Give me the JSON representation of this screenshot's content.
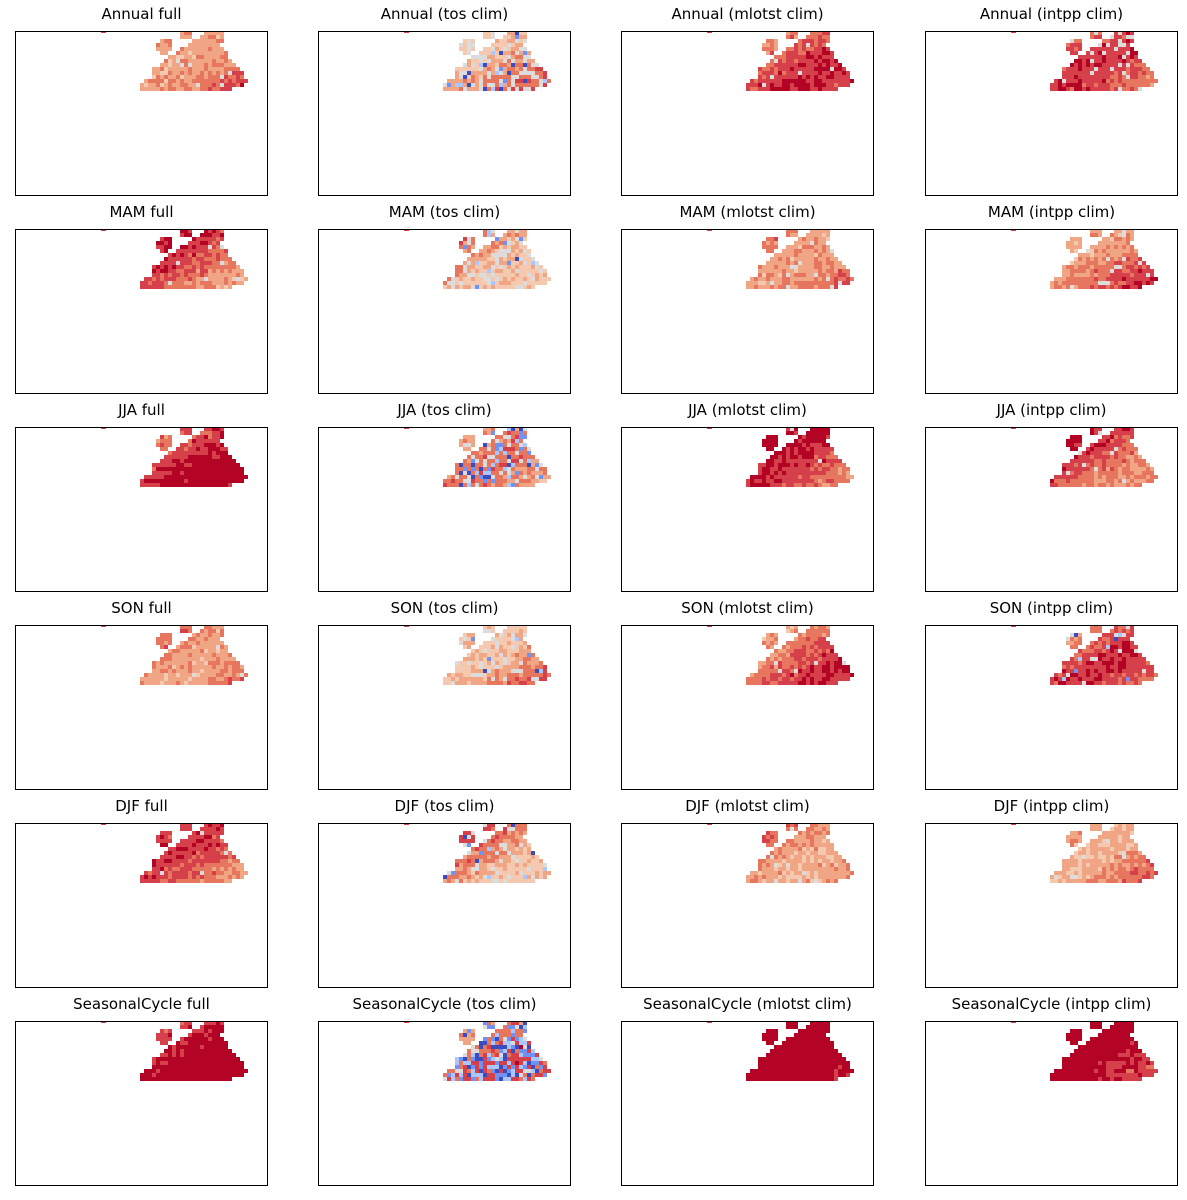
{
  "colors": {
    "deep_red": "#b40426",
    "red": "#d6404a",
    "salmon": "#e7765e",
    "light_salmon": "#f0a584",
    "pale": "#f5c8b0",
    "gray": "#dcdcdc",
    "light_blue": "#aac7fd",
    "blue": "#6f92f3",
    "deep_blue": "#3b4cc0",
    "frame": "#000000"
  },
  "chart_data": [
    {
      "type": "heatmap",
      "title": "Annual full",
      "row": "Annual",
      "variant": "full",
      "palette": "coolwarm",
      "intensity": 0.55,
      "blue_fraction": 0.0,
      "gray_fraction": 0.02
    },
    {
      "type": "heatmap",
      "title": "Annual (tos clim)",
      "row": "Annual",
      "variant": "tos clim",
      "palette": "coolwarm",
      "intensity": 0.35,
      "blue_fraction": 0.08,
      "gray_fraction": 0.22
    },
    {
      "type": "heatmap",
      "title": "Annual (mlotst clim)",
      "row": "Annual",
      "variant": "mlotst clim",
      "palette": "coolwarm",
      "intensity": 0.55,
      "blue_fraction": 0.0,
      "gray_fraction": 0.03
    },
    {
      "type": "heatmap",
      "title": "Annual (intpp clim)",
      "row": "Annual",
      "variant": "intpp clim",
      "palette": "coolwarm",
      "intensity": 0.5,
      "blue_fraction": 0.0,
      "gray_fraction": 0.12
    },
    {
      "type": "heatmap",
      "title": "MAM full",
      "row": "MAM",
      "variant": "full",
      "palette": "coolwarm",
      "intensity": 0.55,
      "blue_fraction": 0.0,
      "gray_fraction": 0.02
    },
    {
      "type": "heatmap",
      "title": "MAM (tos clim)",
      "row": "MAM",
      "variant": "tos clim",
      "palette": "coolwarm",
      "intensity": 0.35,
      "blue_fraction": 0.06,
      "gray_fraction": 0.18
    },
    {
      "type": "heatmap",
      "title": "MAM (mlotst clim)",
      "row": "MAM",
      "variant": "mlotst clim",
      "palette": "coolwarm",
      "intensity": 0.55,
      "blue_fraction": 0.0,
      "gray_fraction": 0.02
    },
    {
      "type": "heatmap",
      "title": "MAM (intpp clim)",
      "row": "MAM",
      "variant": "intpp clim",
      "palette": "coolwarm",
      "intensity": 0.55,
      "blue_fraction": 0.0,
      "gray_fraction": 0.04
    },
    {
      "type": "heatmap",
      "title": "JJA full",
      "row": "JJA",
      "variant": "full",
      "palette": "coolwarm",
      "intensity": 0.72,
      "blue_fraction": 0.0,
      "gray_fraction": 0.0
    },
    {
      "type": "heatmap",
      "title": "JJA (tos clim)",
      "row": "JJA",
      "variant": "tos clim",
      "palette": "coolwarm",
      "intensity": 0.3,
      "blue_fraction": 0.14,
      "gray_fraction": 0.15
    },
    {
      "type": "heatmap",
      "title": "JJA (mlotst clim)",
      "row": "JJA",
      "variant": "mlotst clim",
      "palette": "coolwarm",
      "intensity": 0.65,
      "blue_fraction": 0.0,
      "gray_fraction": 0.02
    },
    {
      "type": "heatmap",
      "title": "JJA (intpp clim)",
      "row": "JJA",
      "variant": "intpp clim",
      "palette": "coolwarm",
      "intensity": 0.65,
      "blue_fraction": 0.0,
      "gray_fraction": 0.03
    },
    {
      "type": "heatmap",
      "title": "SON full",
      "row": "SON",
      "variant": "full",
      "palette": "coolwarm",
      "intensity": 0.55,
      "blue_fraction": 0.0,
      "gray_fraction": 0.02
    },
    {
      "type": "heatmap",
      "title": "SON (tos clim)",
      "row": "SON",
      "variant": "tos clim",
      "palette": "coolwarm",
      "intensity": 0.38,
      "blue_fraction": 0.03,
      "gray_fraction": 0.15
    },
    {
      "type": "heatmap",
      "title": "SON (mlotst clim)",
      "row": "SON",
      "variant": "mlotst clim",
      "palette": "coolwarm",
      "intensity": 0.55,
      "blue_fraction": 0.0,
      "gray_fraction": 0.02
    },
    {
      "type": "heatmap",
      "title": "SON (intpp clim)",
      "row": "SON",
      "variant": "intpp clim",
      "palette": "coolwarm",
      "intensity": 0.5,
      "blue_fraction": 0.02,
      "gray_fraction": 0.06
    },
    {
      "type": "heatmap",
      "title": "DJF full",
      "row": "DJF",
      "variant": "full",
      "palette": "coolwarm",
      "intensity": 0.5,
      "blue_fraction": 0.0,
      "gray_fraction": 0.02
    },
    {
      "type": "heatmap",
      "title": "DJF (tos clim)",
      "row": "DJF",
      "variant": "tos clim",
      "palette": "coolwarm",
      "intensity": 0.38,
      "blue_fraction": 0.06,
      "gray_fraction": 0.12
    },
    {
      "type": "heatmap",
      "title": "DJF (mlotst clim)",
      "row": "DJF",
      "variant": "mlotst clim",
      "palette": "coolwarm",
      "intensity": 0.5,
      "blue_fraction": 0.0,
      "gray_fraction": 0.02
    },
    {
      "type": "heatmap",
      "title": "DJF (intpp clim)",
      "row": "DJF",
      "variant": "intpp clim",
      "palette": "coolwarm",
      "intensity": 0.48,
      "blue_fraction": 0.0,
      "gray_fraction": 0.04
    },
    {
      "type": "heatmap",
      "title": "SeasonalCycle full",
      "row": "SeasonalCycle",
      "variant": "full",
      "palette": "coolwarm",
      "intensity": 0.97,
      "blue_fraction": 0.0,
      "gray_fraction": 0.0
    },
    {
      "type": "heatmap",
      "title": "SeasonalCycle (tos clim)",
      "row": "SeasonalCycle",
      "variant": "tos clim",
      "palette": "coolwarm",
      "intensity": 0.45,
      "blue_fraction": 0.35,
      "gray_fraction": 0.06
    },
    {
      "type": "heatmap",
      "title": "SeasonalCycle (mlotst clim)",
      "row": "SeasonalCycle",
      "variant": "mlotst clim",
      "palette": "coolwarm",
      "intensity": 0.95,
      "blue_fraction": 0.0,
      "gray_fraction": 0.0
    },
    {
      "type": "heatmap",
      "title": "SeasonalCycle (intpp clim)",
      "row": "SeasonalCycle",
      "variant": "intpp clim",
      "palette": "coolwarm",
      "intensity": 0.93,
      "blue_fraction": 0.0,
      "gray_fraction": 0.0
    }
  ]
}
